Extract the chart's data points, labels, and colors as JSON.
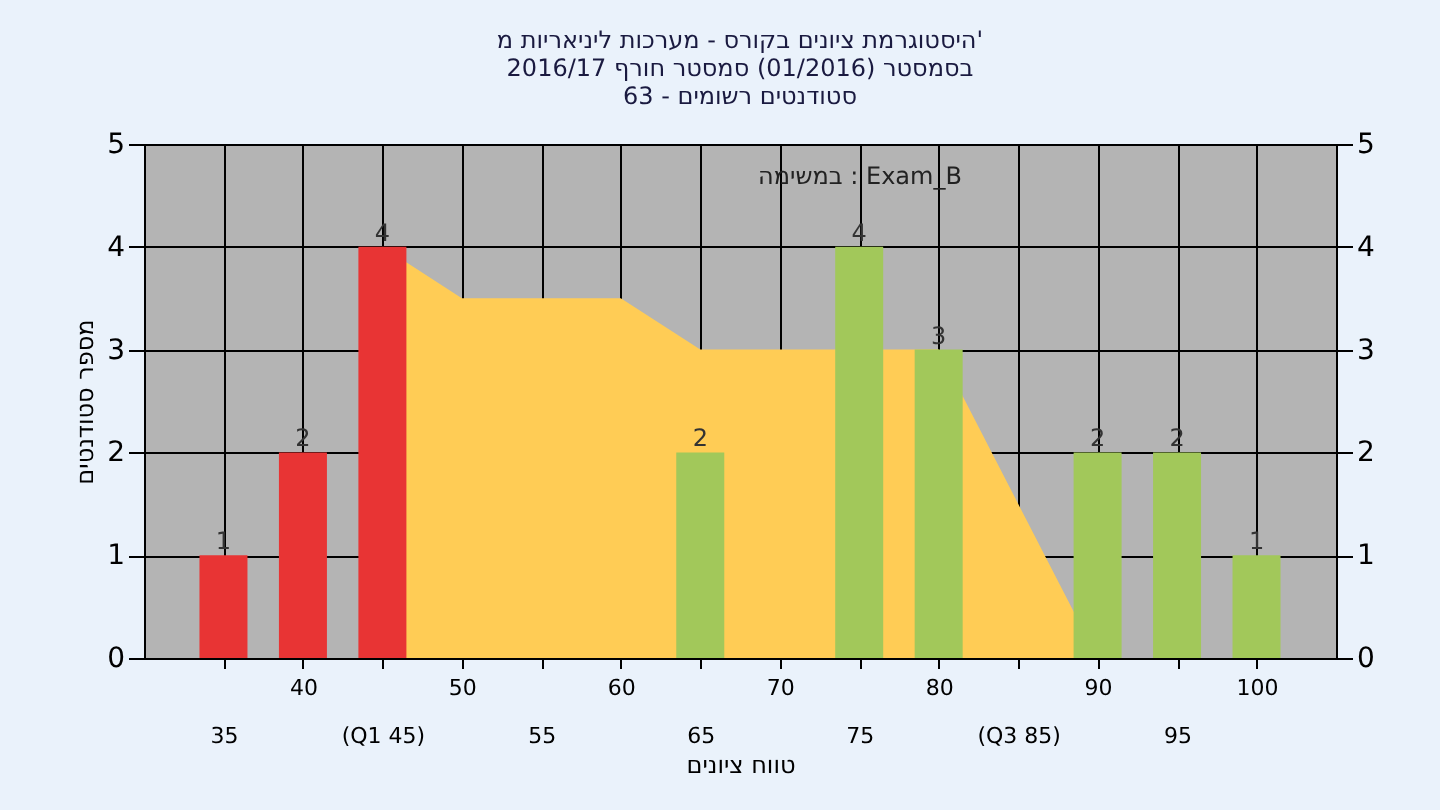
{
  "chart_data": {
    "type": "bar",
    "title": [
      "היסטוגרמת ציונים בקורס - מערכות ליניאריות מ'",
      "בסמסטר (01/2016) סמסטר חורף 2016/17",
      "סטודנטים רשומים - 63"
    ],
    "xlabel": "טווח ציונים",
    "ylabel": "מספר סטודנטים",
    "categories": [
      "35",
      "40",
      "(Q1 45)",
      "50",
      "55",
      "60",
      "65",
      "70",
      "75",
      "80",
      "(Q3 85)",
      "90",
      "95",
      "100"
    ],
    "series": [
      {
        "type": "area",
        "color": "#ffcc55",
        "values": [
          null,
          null,
          4,
          3.5,
          3.5,
          3.5,
          3,
          3,
          null,
          3,
          1.5,
          0,
          null,
          null
        ]
      },
      {
        "value_labels": [
          "1",
          "2",
          "4",
          null,
          null,
          null,
          "2",
          null,
          "4",
          "3",
          null,
          "2",
          "2",
          "1"
        ],
        "colors": [
          "#e83434",
          "#e83434",
          "#e83434",
          null,
          null,
          null,
          "#a2c85a",
          null,
          "#a2c85a",
          "#a2c85a",
          null,
          "#a2c85a",
          "#a2c85a",
          "#a2c85a"
        ],
        "values": [
          1,
          2,
          4,
          null,
          null,
          null,
          2,
          null,
          4,
          3,
          null,
          2,
          2,
          1
        ]
      }
    ],
    "ylim": [
      0,
      5
    ],
    "yticks": [
      0,
      1,
      2,
      3,
      4,
      5
    ],
    "y2lim": [
      0,
      5
    ],
    "y2ticks": [
      0,
      1,
      2,
      3,
      4,
      5
    ],
    "annotations": [
      "במשימה : Exam_B"
    ],
    "grid": true
  }
}
